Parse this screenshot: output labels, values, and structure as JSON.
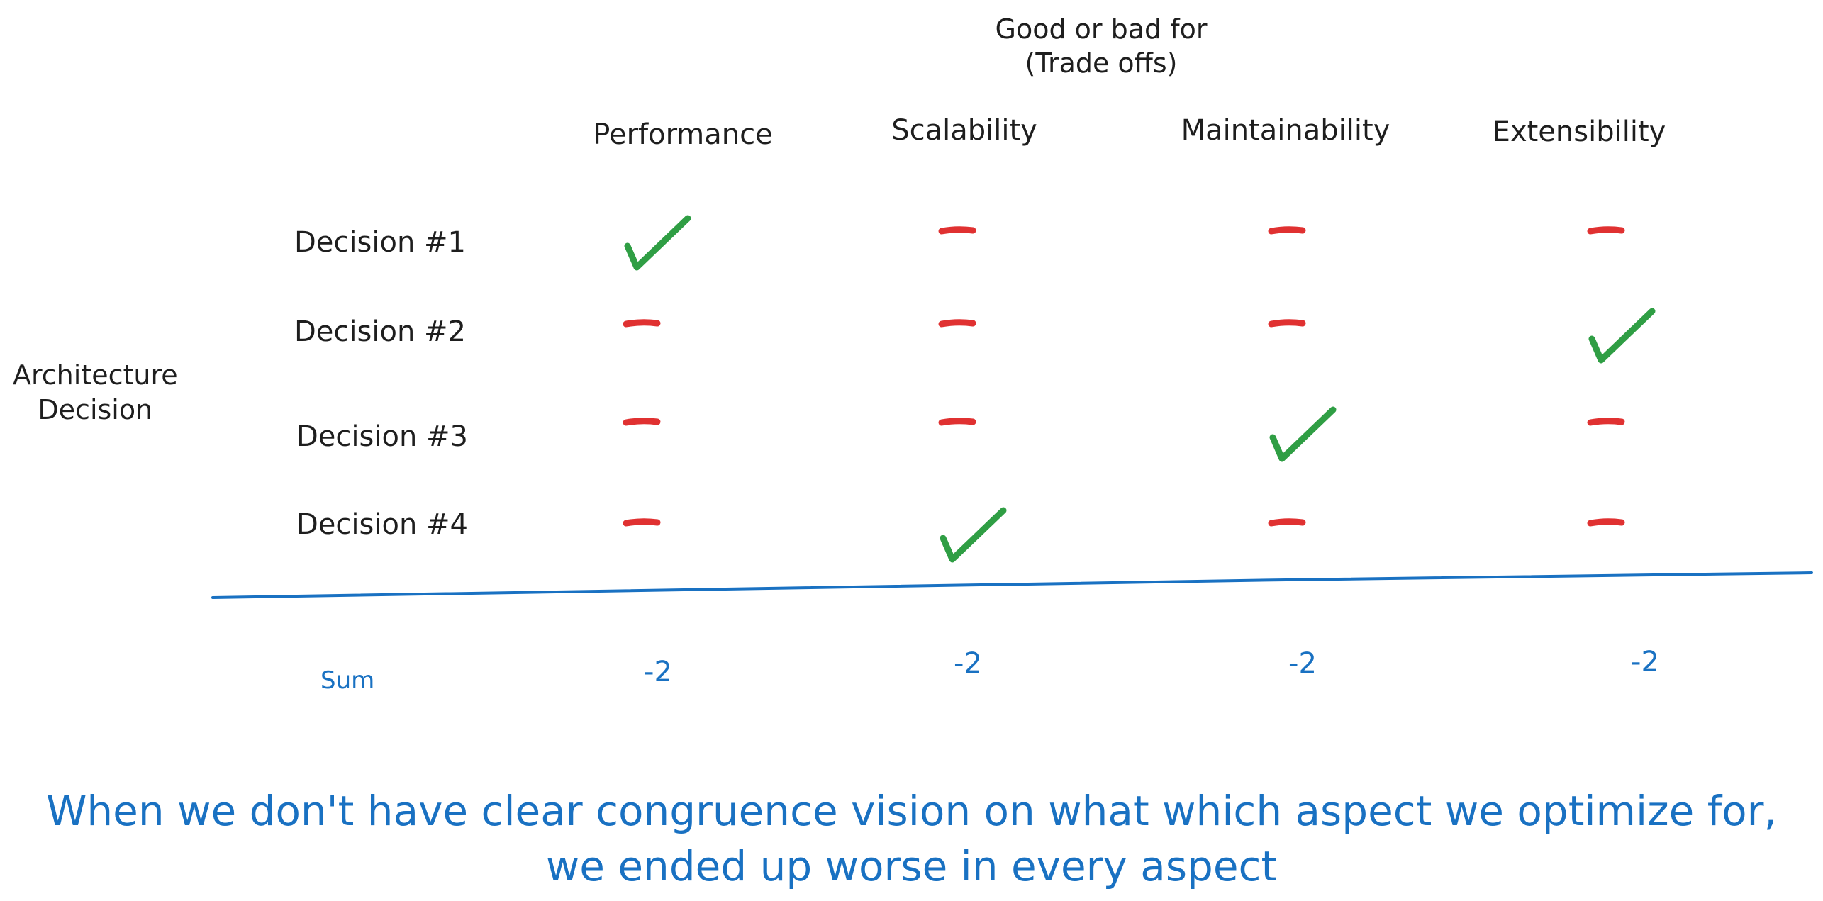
{
  "header": {
    "line1": "Good or bad for",
    "line2": "(Trade offs)"
  },
  "axis_label": {
    "line1": "Architecture",
    "line2": "Decision"
  },
  "columns": [
    "Performance",
    "Scalability",
    "Maintainability",
    "Extensibility"
  ],
  "rows": [
    "Decision #1",
    "Decision #2",
    "Decision #3",
    "Decision #4"
  ],
  "matrix": [
    [
      "good",
      "bad",
      "bad",
      "bad"
    ],
    [
      "bad",
      "bad",
      "bad",
      "good"
    ],
    [
      "bad",
      "bad",
      "good",
      "bad"
    ],
    [
      "bad",
      "good",
      "bad",
      "bad"
    ]
  ],
  "sum": {
    "label": "Sum",
    "values": [
      "-2",
      "-2",
      "-2",
      "-2"
    ]
  },
  "conclusion": {
    "line1": "When we don't have clear congruence vision on what which aspect we optimize for,",
    "line2": "we ended up worse in every aspect"
  },
  "colors": {
    "good": "#2f9e44",
    "bad": "#e03131",
    "accent": "#1971c2",
    "text": "#1e1e1e"
  }
}
